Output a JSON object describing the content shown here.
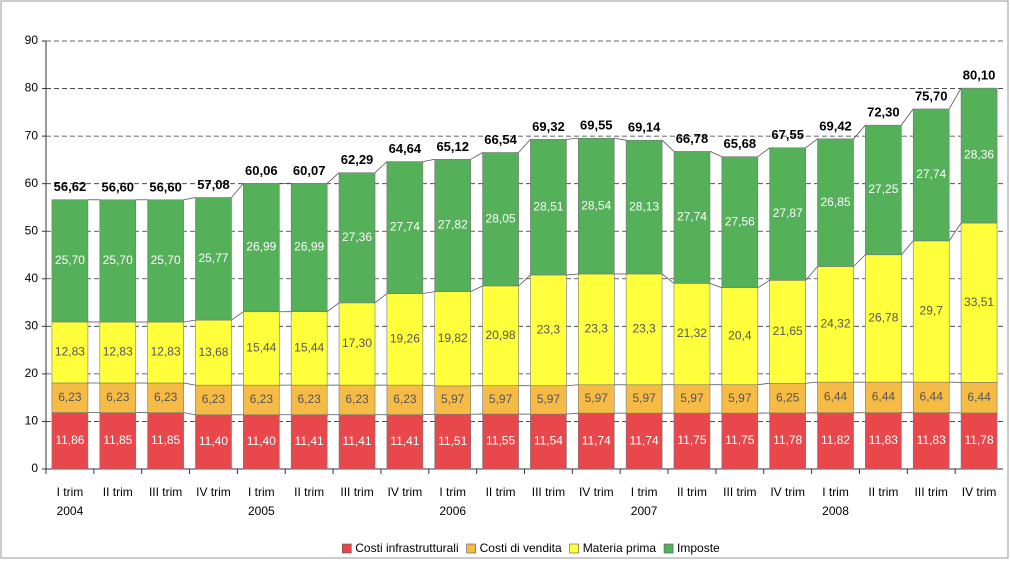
{
  "chart_data": {
    "type": "stacked-bar",
    "categories": [
      "I trim",
      "II trim",
      "III trim",
      "IV trim",
      "I trim",
      "II trim",
      "III trim",
      "IV trim",
      "I trim",
      "II trim",
      "III trim",
      "IV trim",
      "I trim",
      "II trim",
      "III trim",
      "IV trim",
      "I trim",
      "II trim",
      "III trim",
      "IV trim"
    ],
    "category_groups": [
      "2004",
      null,
      null,
      null,
      "2005",
      null,
      null,
      null,
      "2006",
      null,
      null,
      null,
      "2007",
      null,
      null,
      null,
      "2008",
      null,
      null,
      null
    ],
    "series": [
      {
        "name": "Costi infrastrutturali",
        "color": "#e8474c",
        "values": [
          11.86,
          11.85,
          11.85,
          11.4,
          11.4,
          11.41,
          11.41,
          11.41,
          11.51,
          11.55,
          11.54,
          11.74,
          11.74,
          11.75,
          11.75,
          11.78,
          11.82,
          11.83,
          11.83,
          11.78
        ],
        "value_labels": [
          "11,86",
          "11,85",
          "11,85",
          "11,40",
          "11,40",
          "11,41",
          "11,41",
          "11,41",
          "11,51",
          "11,55",
          "11,54",
          "11,74",
          "11,74",
          "11,75",
          "11,75",
          "11,78",
          "11,82",
          "11,83",
          "11,83",
          "11,78"
        ]
      },
      {
        "name": "Costi di vendita",
        "color": "#f6bb45",
        "values": [
          6.23,
          6.23,
          6.23,
          6.23,
          6.23,
          6.23,
          6.23,
          6.23,
          5.97,
          5.97,
          5.97,
          5.97,
          5.97,
          5.97,
          5.97,
          6.25,
          6.44,
          6.44,
          6.44,
          6.44
        ],
        "value_labels": [
          "6,23",
          "6,23",
          "6,23",
          "6,23",
          "6,23",
          "6,23",
          "6,23",
          "6,23",
          "5,97",
          "5,97",
          "5,97",
          "5,97",
          "5,97",
          "5,97",
          "5,97",
          "6,25",
          "6,44",
          "6,44",
          "6,44",
          "6,44"
        ]
      },
      {
        "name": "Materia prima",
        "color": "#ffff3c",
        "values": [
          12.83,
          12.83,
          12.83,
          13.68,
          15.44,
          15.44,
          17.3,
          19.26,
          19.82,
          20.98,
          23.3,
          23.3,
          23.3,
          21.32,
          20.4,
          21.65,
          24.32,
          26.78,
          29.7,
          33.51
        ],
        "value_labels": [
          "12,83",
          "12,83",
          "12,83",
          "13,68",
          "15,44",
          "15,44",
          "17,30",
          "19,26",
          "19,82",
          "20,98",
          "23,3",
          "23,3",
          "23,3",
          "21,32",
          "20,4",
          "21,65",
          "24,32",
          "26,78",
          "29,7",
          "33,51"
        ]
      },
      {
        "name": "Imposte",
        "color": "#55b05a",
        "values": [
          25.7,
          25.7,
          25.7,
          25.77,
          26.99,
          26.99,
          27.36,
          27.74,
          27.82,
          28.05,
          28.51,
          28.54,
          28.13,
          27.74,
          27.56,
          27.87,
          26.85,
          27.25,
          27.74,
          28.36
        ],
        "value_labels": [
          "25,70",
          "25,70",
          "25,70",
          "25,77",
          "26,99",
          "26,99",
          "27,36",
          "27,74",
          "27,82",
          "28,05",
          "28,51",
          "28,54",
          "28,13",
          "27,74",
          "27,56",
          "27,87",
          "26,85",
          "27,25",
          "27,74",
          "28,36"
        ]
      }
    ],
    "totals": [
      56.62,
      56.6,
      56.6,
      57.08,
      60.06,
      60.07,
      62.29,
      64.64,
      65.12,
      66.54,
      69.32,
      69.55,
      69.14,
      66.78,
      65.68,
      67.55,
      69.42,
      72.3,
      75.7,
      80.1
    ],
    "total_labels": [
      "56,62",
      "56,60",
      "56,60",
      "57,08",
      "60,06",
      "60,07",
      "62,29",
      "64,64",
      "65,12",
      "66,54",
      "69,32",
      "69,55",
      "69,14",
      "66,78",
      "65,68",
      "67,55",
      "69,42",
      "72,30",
      "75,70",
      "80,10"
    ],
    "ylim": [
      0,
      90
    ],
    "yticks": [
      0,
      10,
      20,
      30,
      40,
      50,
      60,
      70,
      80,
      90
    ],
    "grid": true,
    "legend": "bottom"
  }
}
